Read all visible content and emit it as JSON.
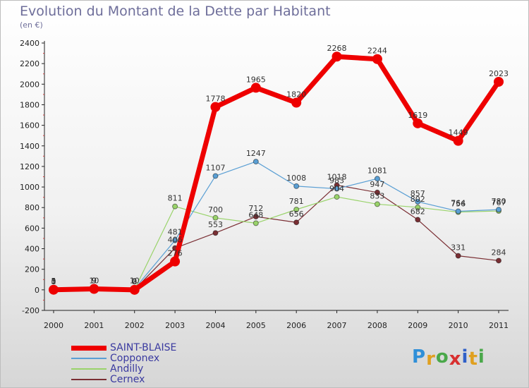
{
  "title": "Evolution du Montant de la Dette par Habitant",
  "unit": "(en €)",
  "logo": {
    "text": "Proxiti",
    "colors": [
      "#2f8fd8",
      "#e0a020",
      "#4aa84a",
      "#d83030",
      "#3060c8",
      "#e0a020",
      "#4aa84a"
    ]
  },
  "chart_data": {
    "type": "line",
    "title": "Evolution du Montant de la Dette par Habitant",
    "subtitle": "(en €)",
    "xlabel": "",
    "ylabel": "",
    "x": [
      "2000",
      "2001",
      "2002",
      "2003",
      "2004",
      "2005",
      "2006",
      "2007",
      "2008",
      "2009",
      "2010",
      "2011"
    ],
    "ylim": [
      -200,
      2400
    ],
    "yticks": [
      -200,
      0,
      200,
      400,
      600,
      800,
      1000,
      1200,
      1400,
      1600,
      1800,
      2000,
      2200,
      2400
    ],
    "grid": false,
    "legend": "bottom-left",
    "series": [
      {
        "name": "SAINT-BLAISE",
        "color": "#ee0000",
        "width": 7,
        "values": [
          1,
          9,
          0,
          276,
          1778,
          1965,
          1820,
          2268,
          2244,
          1619,
          1449,
          2023
        ],
        "labels": [
          "1",
          "9",
          "0",
          "276",
          "1778",
          "1965",
          "1820",
          "2268",
          "2244",
          "1619",
          "1449",
          "2023"
        ]
      },
      {
        "name": "Copponex",
        "color": "#5a9fd4",
        "width": 1.2,
        "values": [
          5,
          10,
          10,
          481,
          1107,
          1247,
          1008,
          983,
          1081,
          857,
          764,
          780
        ],
        "labels": [
          "5",
          "10",
          "10",
          "481",
          "1107",
          "1247",
          "1008",
          "983",
          "1081",
          "857",
          "764",
          "780"
        ]
      },
      {
        "name": "Andilly",
        "color": "#99d36a",
        "width": 1.2,
        "values": [
          0,
          9,
          3,
          811,
          700,
          648,
          781,
          904,
          833,
          802,
          756,
          767
        ],
        "labels": [
          "0",
          "9",
          "3",
          "811",
          "700",
          "648",
          "781",
          "904",
          "833",
          "802",
          "756",
          "767"
        ]
      },
      {
        "name": "Cernex",
        "color": "#7a2e33",
        "width": 1.2,
        "values": [
          3,
          9,
          2,
          406,
          553,
          712,
          656,
          1018,
          947,
          682,
          331,
          284
        ],
        "labels": [
          "3",
          "9",
          "2",
          "406",
          "553",
          "712",
          "656",
          "1018",
          "947",
          "682",
          "331",
          "284"
        ]
      }
    ]
  }
}
